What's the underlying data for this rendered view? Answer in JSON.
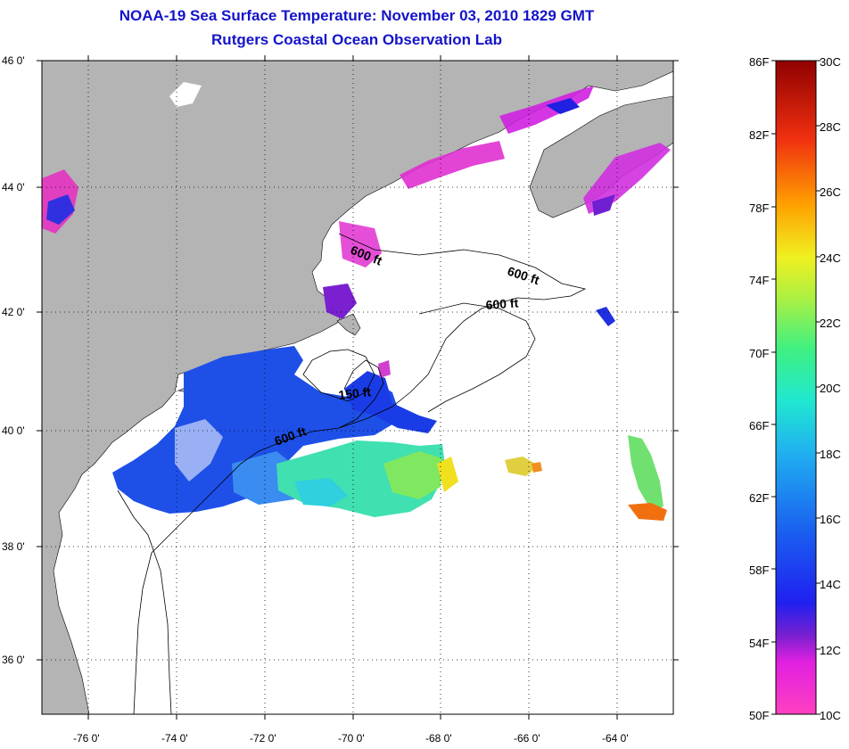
{
  "titles": {
    "line1": "NOAA-19 Sea Surface Temperature:  November 03, 2010 1829 GMT",
    "line2": "Rutgers Coastal Ocean Observation Lab"
  },
  "axes": {
    "lat_ticks": [
      {
        "label": "46 0'"
      },
      {
        "label": "44 0'"
      },
      {
        "label": "42 0'"
      },
      {
        "label": "40 0'"
      },
      {
        "label": "38 0'"
      },
      {
        "label": "36 0'"
      }
    ],
    "lon_ticks": [
      {
        "label": "-76 0'"
      },
      {
        "label": "-74 0'"
      },
      {
        "label": "-72 0'"
      },
      {
        "label": "-70 0'"
      },
      {
        "label": "-68 0'"
      },
      {
        "label": "-66 0'"
      },
      {
        "label": "-64 0'"
      }
    ]
  },
  "contours": [
    {
      "label": "600 ft"
    },
    {
      "label": "600 ft"
    },
    {
      "label": "600 ft"
    },
    {
      "label": "150 ft"
    },
    {
      "label": "600 ft"
    }
  ],
  "color_scale": {
    "fahrenheit": [
      "86F",
      "82F",
      "78F",
      "74F",
      "70F",
      "66F",
      "62F",
      "58F",
      "54F",
      "50F"
    ],
    "celsius": [
      "30C",
      "28C",
      "26C",
      "24C",
      "22C",
      "20C",
      "18C",
      "16C",
      "14C",
      "12C",
      "10C"
    ]
  },
  "colors": {
    "land": "#b4b4b4",
    "title": "#1414c8",
    "ocean_nodata": "#ffffff"
  }
}
